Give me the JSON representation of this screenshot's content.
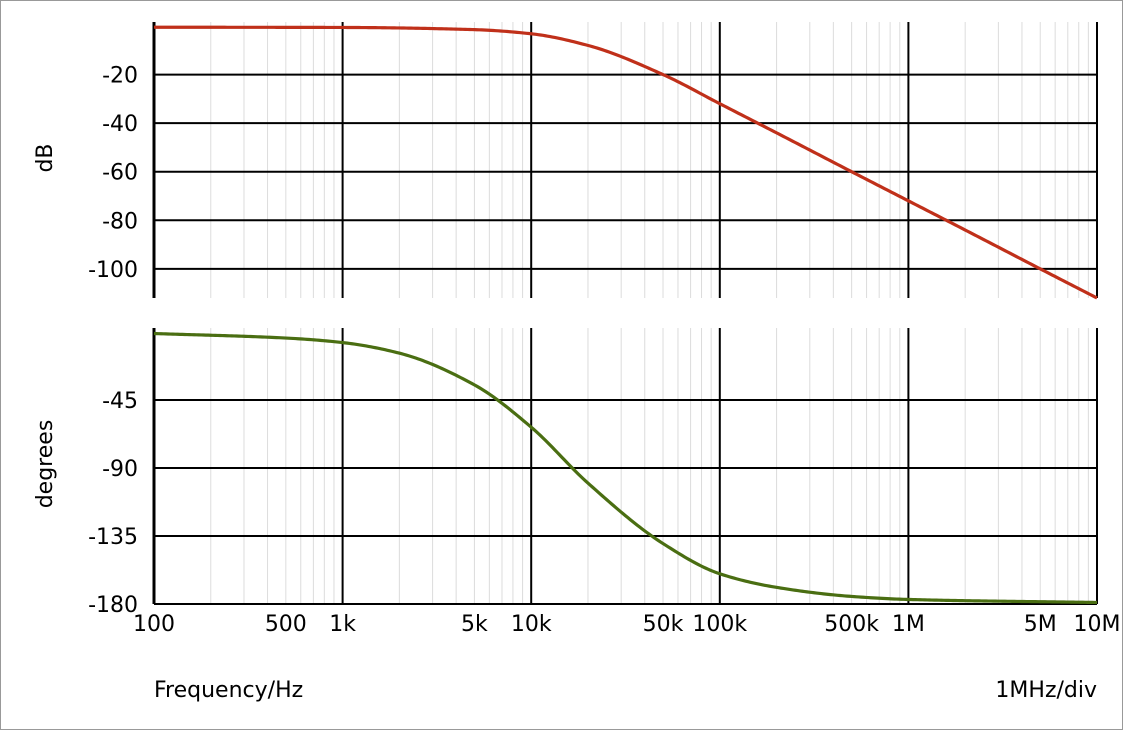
{
  "chart_data": [
    {
      "type": "line",
      "panel": "magnitude",
      "ylabel": "dB",
      "xscale": "log",
      "xlim": [
        100,
        10000000
      ],
      "ylim": [
        -112,
        0
      ],
      "yticks": [
        -20,
        -40,
        -60,
        -80,
        -100
      ],
      "grid": true,
      "color": "#c0301a",
      "x": [
        100,
        1000,
        5000,
        10000,
        20000,
        50000,
        100000,
        200000,
        500000,
        1000000,
        2000000,
        5000000,
        10000000
      ],
      "y": [
        -0.5,
        -0.6,
        -1.5,
        -3.2,
        -8,
        -20,
        -32,
        -44,
        -60,
        -72,
        -84,
        -100,
        -112
      ]
    },
    {
      "type": "line",
      "panel": "phase",
      "ylabel": "degrees",
      "xscale": "log",
      "xlim": [
        100,
        10000000
      ],
      "ylim": [
        -180,
        0
      ],
      "yticks": [
        -45,
        -90,
        -135,
        -180
      ],
      "grid": true,
      "color": "#4a6e12",
      "x": [
        100,
        500,
        1000,
        2000,
        5000,
        10000,
        20000,
        50000,
        100000,
        200000,
        500000,
        1000000,
        10000000
      ],
      "y": [
        -1,
        -4,
        -7,
        -14,
        -35,
        -63,
        -100,
        -140,
        -160,
        -169,
        -175,
        -177,
        -179
      ]
    }
  ],
  "x_axis": {
    "tick_labels": [
      {
        "value": 100,
        "label": "100"
      },
      {
        "value": 500,
        "label": "500"
      },
      {
        "value": 1000,
        "label": "1k"
      },
      {
        "value": 5000,
        "label": "5k"
      },
      {
        "value": 10000,
        "label": "10k"
      },
      {
        "value": 50000,
        "label": "50k"
      },
      {
        "value": 100000,
        "label": "100k"
      },
      {
        "value": 500000,
        "label": "500k"
      },
      {
        "value": 1000000,
        "label": "1M"
      },
      {
        "value": 5000000,
        "label": "5M"
      },
      {
        "value": 10000000,
        "label": "10M"
      }
    ],
    "xlabel": "Frequency/Hz",
    "scale_note": "1MHz/div"
  }
}
